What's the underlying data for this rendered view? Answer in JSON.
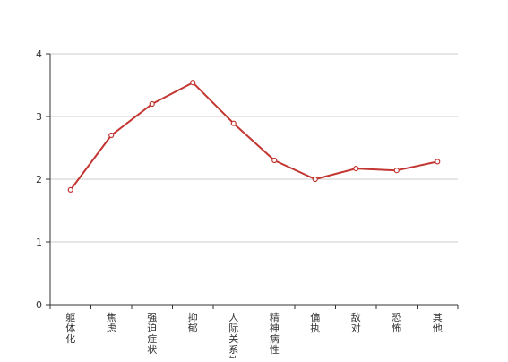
{
  "chart_data": {
    "type": "line",
    "categories": [
      "躯体化",
      "焦虑",
      "强迫症状",
      "抑郁",
      "人际关系敏感",
      "精神病性",
      "偏执",
      "敌对",
      "恐怖",
      "其他"
    ],
    "series": [
      {
        "values": [
          1.83,
          2.7,
          3.2,
          3.54,
          2.89,
          2.3,
          2.0,
          2.17,
          2.14,
          2.28
        ],
        "color": "#c23531"
      }
    ],
    "ylim": [
      0,
      4
    ],
    "yticks": [
      0,
      1,
      2,
      3,
      4
    ],
    "grid": true,
    "xlabel": "",
    "ylabel": "",
    "title": ""
  }
}
